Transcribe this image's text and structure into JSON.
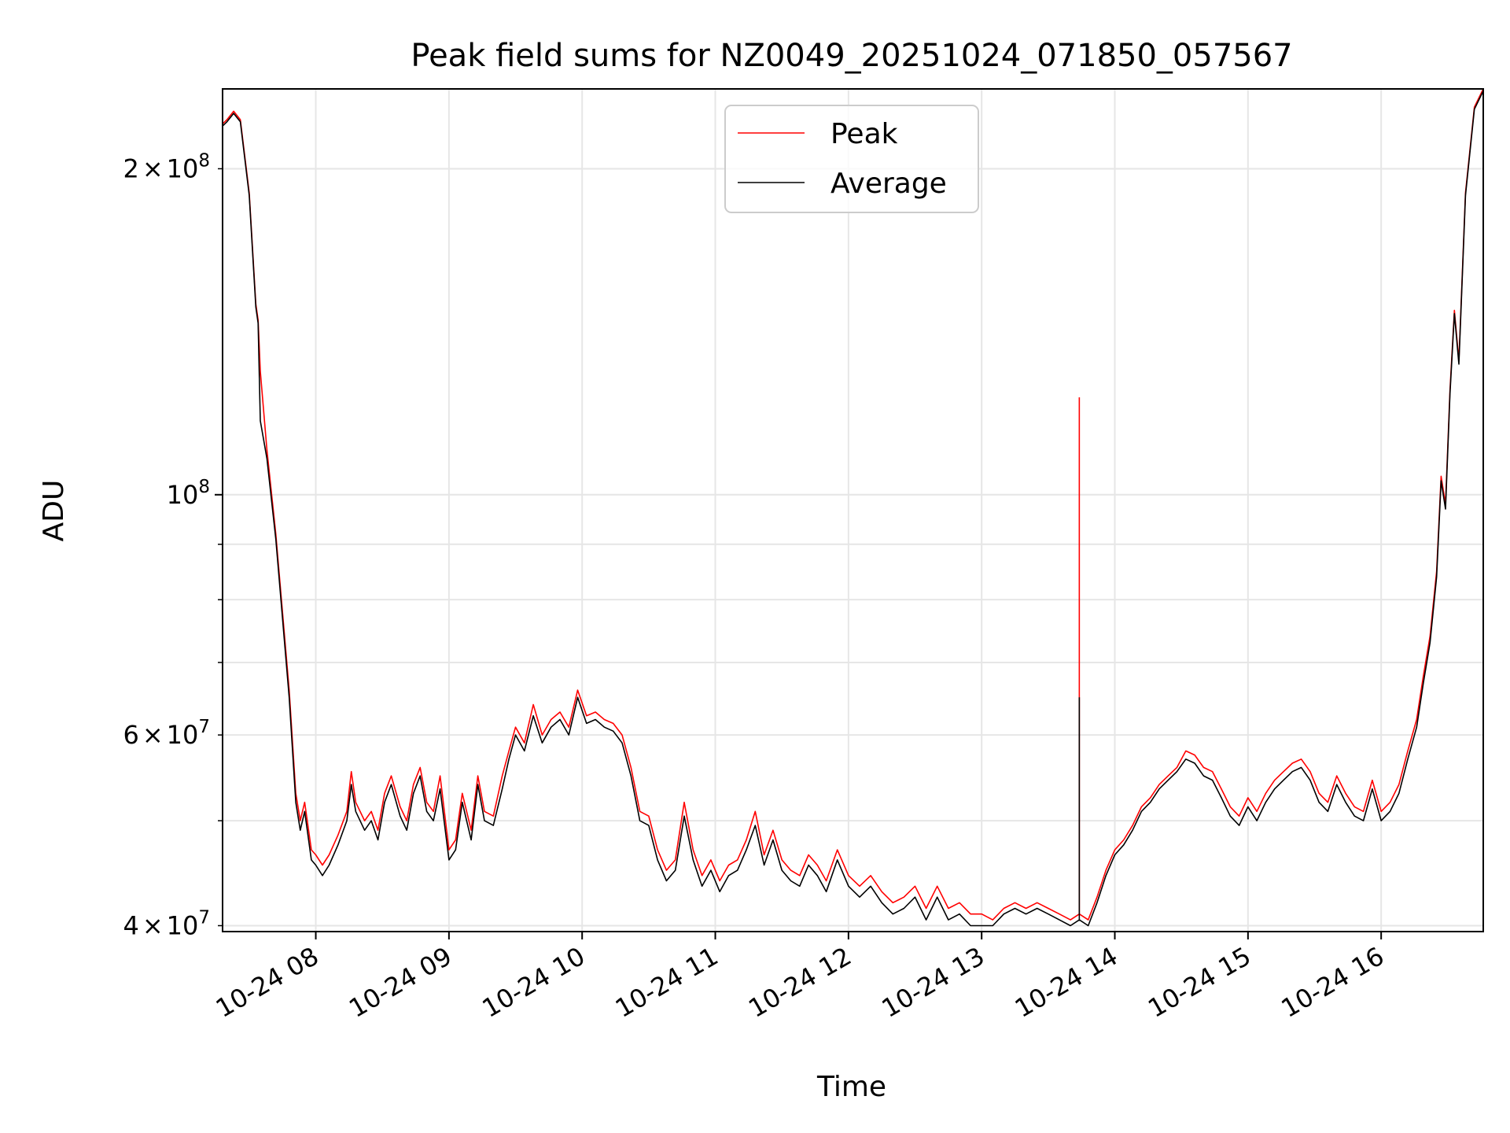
{
  "chart_data": {
    "type": "line",
    "title": "Peak field sums for NZ0049_20251024_071850_057567",
    "xlabel": "Time",
    "ylabel": "ADU",
    "y_scale": "log",
    "grid": true,
    "legend_placement": "upper center",
    "xlim": [
      "2025-10-24 07:18",
      "2025-10-24 16:46"
    ],
    "ylim": [
      39500000,
      237000000
    ],
    "x_ticks": [
      {
        "value": "2025-10-24 08:00",
        "label": "10-24 08"
      },
      {
        "value": "2025-10-24 09:00",
        "label": "10-24 09"
      },
      {
        "value": "2025-10-24 10:00",
        "label": "10-24 10"
      },
      {
        "value": "2025-10-24 11:00",
        "label": "10-24 11"
      },
      {
        "value": "2025-10-24 12:00",
        "label": "10-24 12"
      },
      {
        "value": "2025-10-24 13:00",
        "label": "10-24 13"
      },
      {
        "value": "2025-10-24 14:00",
        "label": "10-24 14"
      },
      {
        "value": "2025-10-24 15:00",
        "label": "10-24 15"
      },
      {
        "value": "2025-10-24 16:00",
        "label": "10-24 16"
      }
    ],
    "y_ticks_major": [
      {
        "value": 100000000,
        "base": "10",
        "exp": "8"
      }
    ],
    "y_ticks_minor_labeled": [
      {
        "value": 40000000,
        "mant": "4",
        "base": "10",
        "exp": "7"
      },
      {
        "value": 60000000,
        "mant": "6",
        "base": "10",
        "exp": "7"
      },
      {
        "value": 200000000,
        "mant": "2",
        "base": "10",
        "exp": "8"
      }
    ],
    "y_ticks_minor": [
      50000000,
      70000000,
      80000000,
      90000000
    ],
    "times": [
      "2025-10-24 07:18",
      "2025-10-24 07:20",
      "2025-10-24 07:23",
      "2025-10-24 07:26",
      "2025-10-24 07:30",
      "2025-10-24 07:33",
      "2025-10-24 07:34",
      "2025-10-24 07:35",
      "2025-10-24 07:38",
      "2025-10-24 07:42",
      "2025-10-24 07:48",
      "2025-10-24 07:51",
      "2025-10-24 07:53",
      "2025-10-24 07:55",
      "2025-10-24 07:58",
      "2025-10-24 08:00",
      "2025-10-24 08:03",
      "2025-10-24 08:06",
      "2025-10-24 08:10",
      "2025-10-24 08:14",
      "2025-10-24 08:16",
      "2025-10-24 08:18",
      "2025-10-24 08:22",
      "2025-10-24 08:25",
      "2025-10-24 08:28",
      "2025-10-24 08:31",
      "2025-10-24 08:34",
      "2025-10-24 08:38",
      "2025-10-24 08:41",
      "2025-10-24 08:44",
      "2025-10-24 08:47",
      "2025-10-24 08:50",
      "2025-10-24 08:53",
      "2025-10-24 08:56",
      "2025-10-24 09:00",
      "2025-10-24 09:03",
      "2025-10-24 09:06",
      "2025-10-24 09:10",
      "2025-10-24 09:13",
      "2025-10-24 09:16",
      "2025-10-24 09:20",
      "2025-10-24 09:24",
      "2025-10-24 09:27",
      "2025-10-24 09:30",
      "2025-10-24 09:34",
      "2025-10-24 09:38",
      "2025-10-24 09:42",
      "2025-10-24 09:46",
      "2025-10-24 09:50",
      "2025-10-24 09:54",
      "2025-10-24 09:58",
      "2025-10-24 10:02",
      "2025-10-24 10:06",
      "2025-10-24 10:10",
      "2025-10-24 10:14",
      "2025-10-24 10:18",
      "2025-10-24 10:22",
      "2025-10-24 10:26",
      "2025-10-24 10:30",
      "2025-10-24 10:34",
      "2025-10-24 10:38",
      "2025-10-24 10:42",
      "2025-10-24 10:46",
      "2025-10-24 10:50",
      "2025-10-24 10:54",
      "2025-10-24 10:58",
      "2025-10-24 11:02",
      "2025-10-24 11:06",
      "2025-10-24 11:10",
      "2025-10-24 11:14",
      "2025-10-24 11:18",
      "2025-10-24 11:22",
      "2025-10-24 11:26",
      "2025-10-24 11:30",
      "2025-10-24 11:34",
      "2025-10-24 11:38",
      "2025-10-24 11:42",
      "2025-10-24 11:46",
      "2025-10-24 11:50",
      "2025-10-24 11:55",
      "2025-10-24 12:00",
      "2025-10-24 12:05",
      "2025-10-24 12:10",
      "2025-10-24 12:15",
      "2025-10-24 12:20",
      "2025-10-24 12:25",
      "2025-10-24 12:30",
      "2025-10-24 12:35",
      "2025-10-24 12:40",
      "2025-10-24 12:45",
      "2025-10-24 12:50",
      "2025-10-24 12:55",
      "2025-10-24 13:00",
      "2025-10-24 13:05",
      "2025-10-24 13:10",
      "2025-10-24 13:15",
      "2025-10-24 13:20",
      "2025-10-24 13:25",
      "2025-10-24 13:30",
      "2025-10-24 13:35",
      "2025-10-24 13:40",
      "2025-10-24 13:44",
      "2025-10-24 13:48",
      "2025-10-24 13:52",
      "2025-10-24 13:56",
      "2025-10-24 14:00",
      "2025-10-24 14:04",
      "2025-10-24 14:08",
      "2025-10-24 14:12",
      "2025-10-24 14:16",
      "2025-10-24 14:20",
      "2025-10-24 14:24",
      "2025-10-24 14:28",
      "2025-10-24 14:32",
      "2025-10-24 14:36",
      "2025-10-24 14:40",
      "2025-10-24 14:44",
      "2025-10-24 14:48",
      "2025-10-24 14:52",
      "2025-10-24 14:56",
      "2025-10-24 15:00",
      "2025-10-24 15:04",
      "2025-10-24 15:08",
      "2025-10-24 15:12",
      "2025-10-24 15:16",
      "2025-10-24 15:20",
      "2025-10-24 15:24",
      "2025-10-24 15:28",
      "2025-10-24 15:32",
      "2025-10-24 15:36",
      "2025-10-24 15:40",
      "2025-10-24 15:44",
      "2025-10-24 15:48",
      "2025-10-24 15:52",
      "2025-10-24 15:56",
      "2025-10-24 16:00",
      "2025-10-24 16:04",
      "2025-10-24 16:08",
      "2025-10-24 16:12",
      "2025-10-24 16:16",
      "2025-10-24 16:19",
      "2025-10-24 16:22",
      "2025-10-24 16:25",
      "2025-10-24 16:27",
      "2025-10-24 16:29",
      "2025-10-24 16:31",
      "2025-10-24 16:33",
      "2025-10-24 16:35",
      "2025-10-24 16:38",
      "2025-10-24 16:42",
      "2025-10-24 16:46"
    ],
    "series": [
      {
        "name": "Peak",
        "color": "#ff0000",
        "values": [
          220000000,
          222000000,
          226000000,
          222000000,
          190000000,
          150000000,
          145000000,
          130000000,
          110000000,
          92000000,
          66000000,
          53000000,
          50000000,
          52000000,
          47000000,
          46500000,
          45500000,
          46500000,
          48500000,
          51000000,
          55500000,
          52000000,
          50000000,
          51000000,
          49000000,
          53000000,
          55000000,
          51500000,
          50000000,
          54000000,
          56000000,
          52000000,
          51000000,
          55000000,
          47000000,
          48000000,
          53000000,
          49000000,
          55000000,
          51000000,
          50500000,
          55000000,
          58000000,
          61000000,
          59000000,
          64000000,
          60000000,
          62000000,
          63000000,
          61000000,
          66000000,
          62500000,
          63000000,
          62000000,
          61500000,
          60000000,
          56000000,
          51000000,
          50500000,
          47000000,
          45000000,
          46000000,
          52000000,
          47000000,
          44500000,
          46000000,
          44000000,
          45500000,
          46000000,
          48000000,
          51000000,
          46500000,
          49000000,
          46000000,
          45000000,
          44500000,
          46500000,
          45500000,
          44000000,
          47000000,
          44500000,
          43500000,
          44500000,
          43000000,
          42000000,
          42500000,
          43500000,
          41500000,
          43500000,
          41500000,
          42000000,
          41000000,
          41000000,
          40500000,
          41500000,
          42000000,
          41500000,
          42000000,
          41500000,
          41000000,
          40500000,
          41000000,
          40500000,
          42500000,
          45000000,
          47000000,
          48000000,
          49500000,
          51500000,
          52500000,
          54000000,
          55000000,
          56000000,
          58000000,
          57500000,
          56000000,
          55500000,
          53500000,
          51500000,
          50500000,
          52500000,
          51000000,
          53000000,
          54500000,
          55500000,
          56500000,
          57000000,
          55500000,
          53000000,
          52000000,
          55000000,
          53000000,
          51500000,
          51000000,
          54500000,
          51000000,
          52000000,
          54000000,
          58000000,
          62000000,
          68000000,
          74000000,
          85000000,
          104000000,
          98000000,
          125000000,
          148000000,
          133000000,
          190000000,
          228000000,
          237000000
        ],
        "spike": {
          "time": "2025-10-24 13:44",
          "value": 123000000
        }
      },
      {
        "name": "Average",
        "color": "#000000",
        "values": [
          219000000,
          221000000,
          225000000,
          221000000,
          189000000,
          149000000,
          144000000,
          117000000,
          108000000,
          91000000,
          65000000,
          52000000,
          49000000,
          51000000,
          46000000,
          45500000,
          44500000,
          45500000,
          47500000,
          50000000,
          54000000,
          51000000,
          49000000,
          50000000,
          48000000,
          52000000,
          54000000,
          50500000,
          49000000,
          53000000,
          55000000,
          51000000,
          50000000,
          53500000,
          46000000,
          47000000,
          52000000,
          48000000,
          54000000,
          50000000,
          49500000,
          53500000,
          57000000,
          60000000,
          58000000,
          62500000,
          59000000,
          61000000,
          62000000,
          60000000,
          65000000,
          61500000,
          62000000,
          61000000,
          60500000,
          59000000,
          55000000,
          50000000,
          49500000,
          46000000,
          44000000,
          45000000,
          50500000,
          46000000,
          43500000,
          45000000,
          43000000,
          44500000,
          45000000,
          47000000,
          49500000,
          45500000,
          48000000,
          45000000,
          44000000,
          43500000,
          45500000,
          44500000,
          43000000,
          46000000,
          43500000,
          42500000,
          43500000,
          42000000,
          41000000,
          41500000,
          42500000,
          40500000,
          42500000,
          40500000,
          41000000,
          40000000,
          40000000,
          40000000,
          41000000,
          41500000,
          41000000,
          41500000,
          41000000,
          40500000,
          40000000,
          40500000,
          40000000,
          42000000,
          44500000,
          46500000,
          47500000,
          49000000,
          51000000,
          52000000,
          53500000,
          54500000,
          55500000,
          57000000,
          56500000,
          55000000,
          54500000,
          52500000,
          50500000,
          49500000,
          51500000,
          50000000,
          52000000,
          53500000,
          54500000,
          55500000,
          56000000,
          54500000,
          52000000,
          51000000,
          54000000,
          52000000,
          50500000,
          50000000,
          53500000,
          50000000,
          51000000,
          53000000,
          57000000,
          61000000,
          67000000,
          73000000,
          84000000,
          103000000,
          97000000,
          124000000,
          147000000,
          132000000,
          189000000,
          227000000,
          236000000
        ],
        "spike": {
          "time": "2025-10-24 13:44",
          "value": 65000000
        }
      }
    ]
  }
}
